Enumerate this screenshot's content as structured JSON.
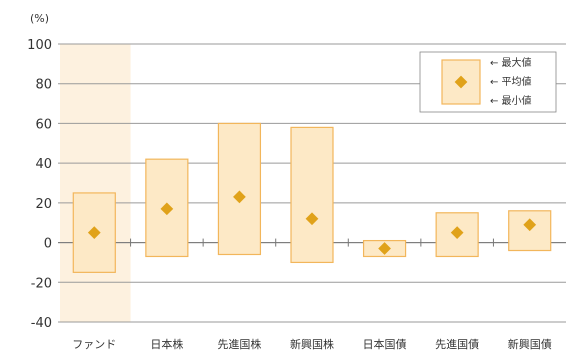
{
  "chart_data": {
    "type": "bar",
    "unit_label": "(%)",
    "categories": [
      "ファンド",
      "日本株",
      "先進国株",
      "新興国株",
      "日本国債",
      "先進国債",
      "新興国債"
    ],
    "series": [
      {
        "name": "最大値",
        "values": [
          25,
          42,
          60,
          58,
          1,
          15,
          16
        ]
      },
      {
        "name": "平均値",
        "values": [
          5,
          17,
          23,
          12,
          -3,
          5,
          9
        ]
      },
      {
        "name": "最小値",
        "values": [
          -15,
          -7,
          -6,
          -10,
          -7,
          -7,
          -4
        ]
      }
    ],
    "ylim": [
      -40,
      100
    ],
    "yticks": [
      100,
      80,
      60,
      40,
      20,
      0,
      -20,
      -40
    ],
    "grid": true,
    "legend_position": "top-right",
    "legend": [
      {
        "label": "最大値",
        "arrow": "←"
      },
      {
        "label": "平均値",
        "arrow": "←"
      },
      {
        "label": "最小値",
        "arrow": "←"
      }
    ],
    "colors": {
      "box_fill": "#fde9c6",
      "box_stroke": "#f2b65b",
      "marker": "#e0a21a",
      "highlight_band": "#fdf1df",
      "grid": "#9a9a9a"
    }
  }
}
